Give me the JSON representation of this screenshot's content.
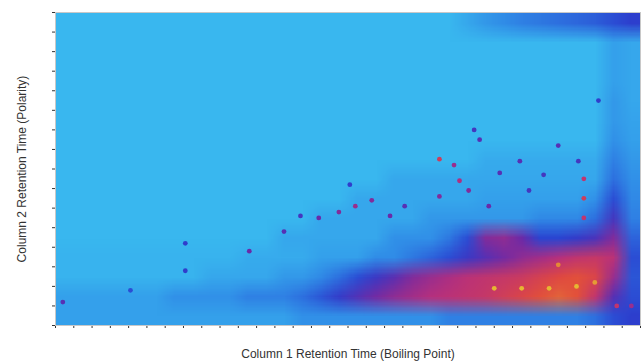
{
  "chart_data": {
    "type": "heatmap",
    "xlabel": "Column 1 Retention Time (Boiling Point)",
    "ylabel": "Column 2 Retention Time (Polarity)",
    "xlim": [
      0,
      32
    ],
    "ylim": [
      0,
      16
    ],
    "xticks": [
      0,
      1,
      2,
      3,
      4,
      5,
      6,
      7,
      8,
      9,
      10,
      11,
      12,
      13,
      14,
      15,
      16,
      17,
      18,
      19,
      20,
      21,
      22,
      23,
      24,
      25,
      26,
      27,
      28,
      29,
      30,
      31,
      32
    ],
    "yticks": [
      0,
      1,
      2,
      3,
      4,
      5,
      6,
      7,
      8,
      9,
      10,
      11,
      12,
      13,
      14,
      15,
      16
    ],
    "tick_labels": false,
    "grid": false,
    "zlim": [
      0,
      100
    ],
    "cells": [
      [
        4,
        4,
        4,
        4,
        4,
        4,
        4,
        4,
        4,
        4,
        4,
        4,
        4,
        4,
        4,
        4,
        4,
        4,
        4,
        4,
        4,
        4,
        8,
        12,
        15,
        18,
        20,
        22,
        24,
        26,
        30,
        34
      ],
      [
        4,
        4,
        4,
        4,
        4,
        4,
        4,
        4,
        4,
        4,
        4,
        4,
        4,
        4,
        4,
        4,
        4,
        4,
        4,
        4,
        4,
        4,
        4,
        4,
        4,
        4,
        4,
        4,
        4,
        4,
        10,
        8
      ],
      [
        4,
        4,
        4,
        4,
        4,
        4,
        4,
        4,
        4,
        4,
        4,
        4,
        4,
        4,
        4,
        4,
        4,
        4,
        4,
        4,
        4,
        4,
        4,
        4,
        4,
        4,
        4,
        4,
        4,
        4,
        10,
        8
      ],
      [
        4,
        4,
        4,
        4,
        4,
        4,
        4,
        4,
        4,
        4,
        4,
        4,
        4,
        4,
        4,
        4,
        4,
        4,
        4,
        4,
        4,
        4,
        4,
        4,
        4,
        4,
        4,
        4,
        4,
        4,
        10,
        8
      ],
      [
        4,
        4,
        4,
        4,
        4,
        4,
        4,
        4,
        4,
        4,
        4,
        4,
        4,
        4,
        4,
        4,
        4,
        4,
        4,
        4,
        4,
        4,
        4,
        4,
        4,
        4,
        4,
        4,
        4,
        4,
        12,
        8
      ],
      [
        4,
        4,
        4,
        4,
        4,
        4,
        4,
        4,
        4,
        4,
        4,
        4,
        4,
        4,
        4,
        4,
        4,
        4,
        4,
        4,
        4,
        4,
        4,
        4,
        4,
        4,
        4,
        4,
        4,
        4,
        12,
        9
      ],
      [
        4,
        4,
        4,
        4,
        4,
        4,
        4,
        4,
        4,
        4,
        4,
        4,
        4,
        4,
        4,
        4,
        4,
        4,
        4,
        4,
        4,
        4,
        4,
        4,
        4,
        4,
        4,
        4,
        4,
        4,
        14,
        10
      ],
      [
        4,
        4,
        4,
        4,
        4,
        4,
        4,
        4,
        4,
        4,
        4,
        4,
        4,
        4,
        4,
        4,
        4,
        4,
        4,
        4,
        4,
        4,
        4,
        7,
        7,
        7,
        7,
        7,
        7,
        7,
        18,
        12
      ],
      [
        4,
        4,
        4,
        4,
        4,
        4,
        4,
        4,
        4,
        4,
        4,
        4,
        4,
        4,
        4,
        4,
        4,
        4,
        8,
        8,
        8,
        8,
        8,
        8,
        8,
        8,
        8,
        8,
        8,
        8,
        22,
        14
      ],
      [
        4,
        4,
        4,
        4,
        4,
        4,
        4,
        4,
        4,
        4,
        4,
        4,
        4,
        4,
        4,
        4,
        8,
        8,
        8,
        8,
        8,
        8,
        8,
        10,
        10,
        10,
        10,
        10,
        10,
        14,
        30,
        16
      ],
      [
        4,
        4,
        4,
        4,
        4,
        4,
        4,
        4,
        4,
        4,
        4,
        4,
        4,
        4,
        8,
        8,
        8,
        8,
        8,
        8,
        12,
        12,
        12,
        12,
        12,
        12,
        16,
        16,
        16,
        22,
        40,
        18
      ],
      [
        4,
        4,
        4,
        4,
        4,
        4,
        4,
        4,
        4,
        4,
        4,
        4,
        8,
        8,
        8,
        8,
        8,
        8,
        14,
        14,
        14,
        20,
        30,
        55,
        58,
        50,
        32,
        32,
        36,
        42,
        55,
        25
      ],
      [
        5,
        5,
        5,
        5,
        5,
        5,
        5,
        5,
        5,
        5,
        7,
        7,
        7,
        7,
        10,
        10,
        10,
        15,
        15,
        20,
        25,
        30,
        38,
        45,
        52,
        58,
        62,
        66,
        70,
        72,
        68,
        30
      ],
      [
        5,
        5,
        5,
        5,
        5,
        5,
        5,
        5,
        8,
        8,
        8,
        8,
        12,
        12,
        16,
        22,
        30,
        38,
        46,
        55,
        60,
        64,
        68,
        70,
        72,
        74,
        78,
        82,
        84,
        80,
        60,
        28
      ],
      [
        10,
        10,
        10,
        10,
        10,
        10,
        14,
        14,
        14,
        14,
        18,
        18,
        18,
        22,
        28,
        36,
        44,
        52,
        58,
        62,
        66,
        68,
        70,
        72,
        76,
        80,
        84,
        86,
        84,
        70,
        45,
        30
      ],
      [
        10,
        10,
        10,
        10,
        10,
        10,
        10,
        10,
        10,
        10,
        10,
        10,
        10,
        14,
        14,
        14,
        14,
        14,
        14,
        14,
        14,
        18,
        18,
        18,
        18,
        18,
        18,
        18,
        18,
        22,
        30,
        34
      ]
    ],
    "peaks": {
      "x": [
        0.4,
        4.1,
        7.1,
        7.1,
        10.6,
        12.5,
        13.4,
        14.4,
        15.5,
        16.1,
        16.4,
        17.3,
        18.3,
        19.1,
        21.0,
        21.0,
        21.8,
        22.1,
        22.6,
        22.9,
        23.2,
        23.7,
        24.3,
        25.4,
        25.9,
        26.7,
        27.5,
        28.6,
        28.9,
        28.9,
        28.9,
        29.7,
        24.0,
        25.5,
        27.0,
        28.5,
        29.5,
        27.5,
        30.7,
        31.5
      ],
      "y": [
        1.2,
        1.8,
        2.8,
        4.2,
        3.8,
        4.8,
        5.6,
        5.5,
        5.8,
        7.2,
        6.1,
        6.4,
        5.6,
        6.1,
        6.6,
        8.5,
        8.2,
        7.4,
        6.9,
        10.0,
        9.5,
        6.1,
        7.8,
        8.4,
        6.9,
        7.7,
        9.2,
        8.4,
        5.5,
        6.5,
        7.5,
        11.5,
        1.9,
        1.9,
        1.9,
        2.0,
        2.2,
        3.1,
        1.0,
        1.0
      ],
      "values": [
        45,
        30,
        35,
        35,
        50,
        45,
        40,
        50,
        55,
        35,
        60,
        55,
        50,
        45,
        55,
        75,
        60,
        65,
        55,
        40,
        45,
        50,
        45,
        45,
        40,
        40,
        45,
        40,
        70,
        75,
        70,
        35,
        95,
        95,
        95,
        95,
        92,
        90,
        70,
        60
      ]
    }
  }
}
